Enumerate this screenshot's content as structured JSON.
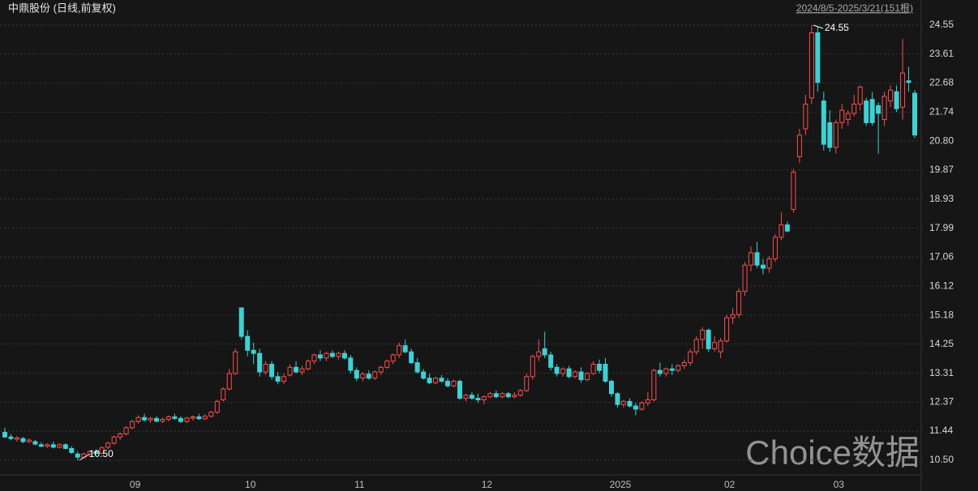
{
  "chart_data": {
    "type": "candlestick",
    "title": "中鼎股份 (日线,前复权)",
    "range_label": "2024/8/5-2025/3/21(151根)",
    "watermark": "Choice数据",
    "up_color": "#ff4d4d",
    "down_color": "#3fd0d4",
    "grid": true,
    "ylim": [
      10.05,
      24.9
    ],
    "yticks": [
      {
        "value": 10.5,
        "label": "10.50"
      },
      11.44,
      12.37,
      13.31,
      14.25,
      15.18,
      16.12,
      17.06,
      17.99,
      18.93,
      19.87,
      {
        "value": 20.8,
        "label": "20.80"
      },
      21.74,
      22.68,
      23.61,
      24.55
    ],
    "annotations": [
      {
        "value": 24.55,
        "label": "24.55"
      },
      {
        "value": 10.5,
        "label": "10.50"
      }
    ],
    "categories": [
      null,
      null,
      null,
      null,
      null,
      null,
      null,
      null,
      null,
      null,
      null,
      null,
      null,
      null,
      null,
      null,
      null,
      null,
      null,
      null,
      "09",
      null,
      null,
      null,
      null,
      null,
      null,
      null,
      null,
      null,
      null,
      null,
      null,
      null,
      null,
      null,
      null,
      null,
      null,
      "10",
      null,
      null,
      null,
      null,
      null,
      null,
      null,
      null,
      null,
      null,
      null,
      null,
      null,
      null,
      null,
      null,
      null,
      "11",
      null,
      null,
      null,
      null,
      null,
      null,
      null,
      null,
      null,
      null,
      null,
      null,
      null,
      null,
      null,
      null,
      null,
      null,
      null,
      null,
      "12",
      null,
      null,
      null,
      null,
      null,
      null,
      null,
      null,
      null,
      null,
      null,
      null,
      null,
      null,
      null,
      null,
      null,
      null,
      null,
      null,
      null,
      "2025",
      null,
      null,
      null,
      null,
      null,
      null,
      null,
      null,
      null,
      null,
      null,
      null,
      null,
      null,
      null,
      null,
      null,
      "02",
      null,
      null,
      null,
      null,
      null,
      null,
      null,
      null,
      null,
      null,
      null,
      null,
      null,
      null,
      null,
      null,
      null,
      "03",
      null,
      null,
      null,
      null,
      null,
      null,
      null,
      null,
      null,
      null,
      null,
      null,
      null,
      null
    ],
    "open": [
      11.4,
      11.25,
      11.18,
      11.2,
      11.1,
      11.1,
      11.0,
      10.95,
      11.0,
      10.92,
      11.0,
      10.88,
      10.7,
      10.6,
      10.7,
      10.78,
      10.72,
      10.92,
      11.05,
      11.25,
      11.35,
      11.55,
      11.75,
      11.88,
      11.8,
      11.85,
      11.76,
      11.82,
      11.9,
      11.85,
      11.75,
      11.86,
      11.9,
      11.84,
      11.92,
      12.05,
      12.45,
      12.8,
      13.3,
      15.42,
      14.5,
      14.05,
      13.95,
      13.35,
      13.6,
      13.2,
      13.05,
      13.25,
      13.5,
      13.35,
      13.45,
      13.7,
      13.9,
      13.8,
      13.95,
      13.85,
      13.95,
      13.8,
      13.4,
      13.15,
      13.28,
      13.15,
      13.35,
      13.5,
      13.7,
      13.9,
      14.2,
      14.0,
      13.65,
      13.35,
      13.15,
      13.0,
      13.15,
      13.05,
      12.9,
      13.05,
      12.5,
      12.6,
      12.5,
      12.45,
      12.55,
      12.65,
      12.55,
      12.65,
      12.55,
      12.6,
      12.75,
      13.2,
      13.85,
      14.1,
      13.9,
      13.5,
      13.3,
      13.45,
      13.2,
      13.35,
      13.1,
      13.3,
      13.6,
      13.6,
      13.05,
      12.65,
      12.3,
      12.4,
      12.25,
      12.15,
      12.35,
      12.45,
      13.4,
      13.3,
      13.45,
      13.4,
      13.55,
      13.65,
      14.0,
      14.4,
      14.7,
      14.1,
      14.0,
      14.35,
      15.1,
      15.2,
      15.95,
      16.8,
      17.2,
      16.8,
      16.7,
      17.0,
      17.7,
      18.1,
      18.6,
      20.3,
      21.2,
      22.2,
      24.3,
      22.1,
      21.4,
      20.6,
      21.4,
      21.5,
      21.7,
      22.0,
      22.1,
      22.15,
      21.95,
      21.5,
      22.1,
      22.4,
      21.9,
      22.75,
      22.35
    ],
    "high": [
      11.55,
      11.35,
      11.28,
      11.25,
      11.2,
      11.15,
      11.08,
      11.05,
      11.1,
      11.05,
      11.05,
      10.95,
      10.78,
      10.75,
      10.82,
      10.85,
      10.95,
      11.1,
      11.3,
      11.4,
      11.6,
      11.8,
      11.95,
      12.0,
      11.9,
      11.92,
      11.88,
      11.95,
      12.0,
      11.92,
      11.9,
      11.95,
      12.0,
      11.98,
      12.1,
      12.45,
      12.85,
      13.45,
      14.1,
      15.42,
      14.7,
      14.3,
      14.1,
      13.7,
      13.7,
      13.35,
      13.3,
      13.6,
      13.7,
      13.55,
      13.75,
      13.95,
      14.05,
      14.0,
      14.05,
      14.0,
      14.05,
      13.9,
      13.5,
      13.35,
      13.4,
      13.4,
      13.55,
      13.75,
      13.95,
      14.3,
      14.4,
      14.1,
      13.8,
      13.45,
      13.3,
      13.2,
      13.25,
      13.15,
      13.1,
      13.1,
      12.65,
      12.7,
      12.65,
      12.6,
      12.7,
      12.75,
      12.7,
      12.7,
      12.7,
      12.8,
      13.3,
      13.9,
      14.4,
      14.65,
      14.0,
      13.6,
      13.5,
      13.55,
      13.4,
      13.5,
      13.35,
      13.7,
      13.75,
      13.8,
      13.1,
      12.7,
      12.45,
      12.5,
      12.35,
      12.4,
      12.7,
      13.45,
      13.65,
      13.5,
      13.6,
      13.6,
      13.75,
      14.1,
      14.5,
      14.8,
      14.75,
      14.5,
      14.45,
      15.2,
      15.4,
      16.05,
      16.9,
      17.4,
      17.55,
      17.0,
      17.1,
      17.8,
      18.5,
      18.2,
      19.9,
      21.2,
      22.3,
      24.55,
      24.5,
      22.4,
      21.8,
      21.5,
      22.0,
      21.8,
      22.3,
      22.6,
      22.2,
      22.4,
      22.05,
      22.4,
      22.6,
      22.6,
      24.1,
      23.2,
      22.45
    ],
    "low": [
      11.22,
      11.15,
      11.1,
      11.05,
      11.05,
      10.98,
      10.92,
      10.9,
      10.88,
      10.88,
      10.85,
      10.7,
      10.5,
      10.55,
      10.62,
      10.65,
      10.7,
      10.85,
      11.0,
      11.15,
      11.3,
      11.5,
      11.68,
      11.75,
      11.7,
      11.72,
      11.7,
      11.75,
      11.8,
      11.7,
      11.7,
      11.78,
      11.8,
      11.8,
      11.88,
      12.0,
      12.4,
      12.75,
      13.25,
      14.4,
      13.85,
      13.6,
      13.2,
      13.25,
      13.1,
      12.95,
      12.95,
      13.2,
      13.3,
      13.25,
      13.4,
      13.6,
      13.7,
      13.7,
      13.8,
      13.75,
      13.75,
      13.3,
      13.05,
      13.05,
      13.1,
      13.1,
      13.25,
      13.45,
      13.6,
      13.8,
      13.95,
      13.6,
      13.3,
      13.1,
      12.95,
      12.95,
      13.0,
      12.85,
      12.85,
      12.45,
      12.4,
      12.45,
      12.35,
      12.3,
      12.5,
      12.5,
      12.5,
      12.5,
      12.5,
      12.55,
      12.7,
      13.1,
      13.7,
      13.8,
      13.4,
      13.2,
      13.2,
      13.15,
      13.15,
      13.0,
      13.05,
      13.25,
      13.3,
      13.0,
      12.55,
      12.2,
      12.2,
      12.2,
      11.95,
      12.1,
      12.25,
      12.4,
      13.2,
      13.2,
      13.25,
      13.35,
      13.45,
      13.55,
      13.9,
      14.1,
      14.0,
      14.0,
      13.8,
      14.3,
      14.9,
      15.1,
      15.8,
      16.6,
      16.7,
      16.5,
      16.55,
      16.9,
      17.6,
      17.85,
      18.5,
      20.1,
      21.0,
      22.0,
      22.4,
      20.5,
      20.45,
      20.4,
      21.2,
      21.3,
      21.6,
      21.8,
      21.3,
      21.3,
      20.4,
      21.3,
      21.9,
      21.75,
      21.5,
      22.4,
      20.9
    ],
    "close": [
      11.25,
      11.2,
      11.22,
      11.1,
      11.15,
      11.02,
      10.95,
      11.0,
      10.92,
      11.0,
      10.88,
      10.75,
      10.6,
      10.7,
      10.78,
      10.72,
      10.9,
      11.05,
      11.25,
      11.35,
      11.55,
      11.75,
      11.88,
      11.8,
      11.85,
      11.76,
      11.82,
      11.9,
      11.85,
      11.75,
      11.86,
      11.9,
      11.84,
      11.92,
      12.05,
      12.4,
      12.8,
      13.3,
      14.0,
      14.5,
      14.05,
      13.95,
      13.35,
      13.6,
      13.2,
      13.05,
      13.2,
      13.5,
      13.35,
      13.45,
      13.7,
      13.9,
      13.8,
      13.95,
      13.85,
      13.95,
      13.8,
      13.4,
      13.15,
      13.28,
      13.15,
      13.35,
      13.5,
      13.7,
      13.9,
      14.2,
      14.0,
      13.65,
      13.35,
      13.15,
      13.0,
      13.15,
      13.05,
      12.9,
      13.05,
      12.5,
      12.6,
      12.5,
      12.45,
      12.55,
      12.65,
      12.55,
      12.65,
      12.55,
      12.6,
      12.75,
      13.2,
      13.85,
      14.0,
      13.9,
      13.5,
      13.3,
      13.45,
      13.2,
      13.35,
      13.1,
      13.3,
      13.6,
      13.4,
      13.05,
      12.65,
      12.3,
      12.4,
      12.25,
      12.15,
      12.35,
      12.45,
      13.4,
      13.3,
      13.45,
      13.4,
      13.55,
      13.65,
      14.0,
      14.4,
      14.7,
      14.1,
      14.3,
      14.35,
      15.1,
      15.2,
      15.95,
      16.8,
      17.2,
      16.8,
      16.7,
      17.0,
      17.7,
      18.1,
      17.9,
      19.8,
      21.0,
      22.0,
      24.3,
      22.7,
      20.7,
      20.6,
      21.4,
      21.8,
      21.7,
      22.0,
      22.55,
      21.4,
      21.4,
      21.7,
      22.25,
      22.45,
      21.85,
      23.0,
      22.7,
      21.0
    ]
  }
}
